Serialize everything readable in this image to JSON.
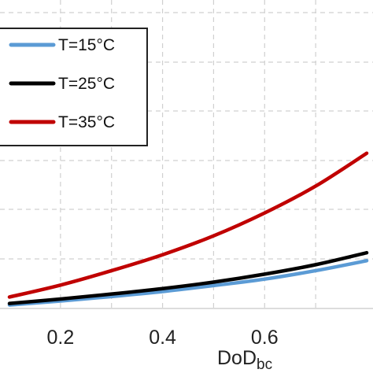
{
  "chart_data": {
    "type": "line",
    "title": "",
    "xlabel": "DoD",
    "xlabel_subscript": "bc",
    "ylabel": "",
    "xlim": [
      0.1,
      0.8
    ],
    "xticks": [
      "0.2",
      "0.4",
      "0.6"
    ],
    "grid": true,
    "legend_placement": "top-left",
    "series": [
      {
        "name": "T=15°C",
        "color": "#5b9bd5",
        "x": [
          0.1,
          0.2,
          0.3,
          0.4,
          0.5,
          0.6,
          0.7,
          0.8
        ],
        "y": [
          0.07,
          0.15,
          0.24,
          0.34,
          0.46,
          0.59,
          0.76,
          0.96
        ]
      },
      {
        "name": "T=25°C",
        "color": "#000000",
        "x": [
          0.1,
          0.2,
          0.3,
          0.4,
          0.5,
          0.6,
          0.7,
          0.8
        ],
        "y": [
          0.1,
          0.19,
          0.29,
          0.4,
          0.53,
          0.69,
          0.88,
          1.12
        ]
      },
      {
        "name": "T=35°C",
        "color": "#c00000",
        "x": [
          0.1,
          0.2,
          0.3,
          0.4,
          0.5,
          0.6,
          0.7,
          0.8
        ],
        "y": [
          0.23,
          0.47,
          0.76,
          1.08,
          1.46,
          1.92,
          2.46,
          3.12
        ]
      }
    ]
  }
}
